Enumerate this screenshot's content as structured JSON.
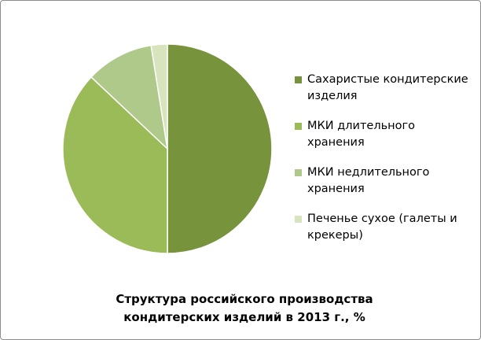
{
  "chart_data": {
    "type": "pie",
    "title": "Структура российского  производства кондитерских изделий в 2013 г., %",
    "categories": [
      "Сахаристые кондитерские изделия",
      "МКИ длительного хранения",
      "МКИ недлительного хранения",
      "Печенье сухое (галеты и крекеры)"
    ],
    "values": [
      50,
      37,
      10.5,
      2.5
    ],
    "colors": [
      "#77933c",
      "#9bbb59",
      "#afc98a",
      "#d7e4bd"
    ]
  }
}
